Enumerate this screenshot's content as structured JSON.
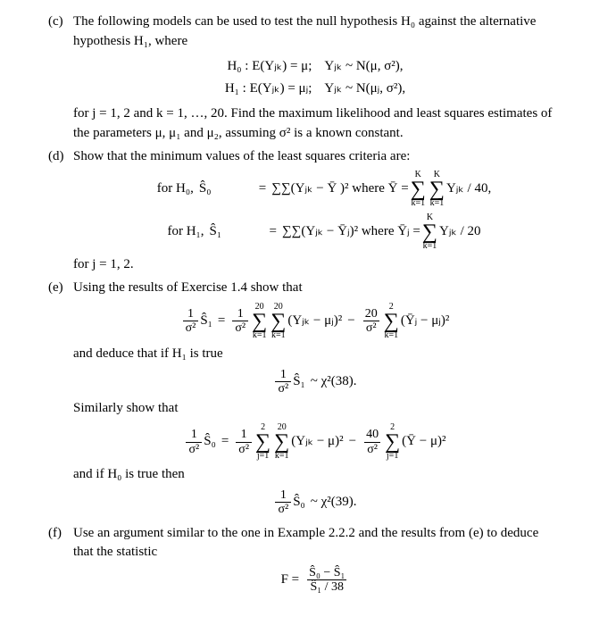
{
  "colors": {
    "text": "#000000",
    "background": "#ffffff"
  },
  "font": {
    "family": "Times New Roman, serif",
    "size_pt": 11
  },
  "c": {
    "marker": "(c)",
    "intro": "The following models can be used to test the null hypothesis H₀ against the alternative hypothesis H₁, where",
    "h0_lhs": "H₀ : E(Yⱼₖ) = μ;",
    "h0_rhs": "Yⱼₖ ~ N(μ, σ²),",
    "h1_lhs": "H₁ : E(Yⱼₖ) = μⱼ;",
    "h1_rhs": "Yⱼₖ ~ N(μⱼ, σ²),",
    "tail": "for j = 1, 2 and k = 1, …, 20.  Find the maximum likelihood and least squares estimates of the parameters μ, μ₁ and μ₂, assuming σ² is a known constant."
  },
  "d": {
    "marker": "(d)",
    "intro": "Show that the minimum values of the least squares criteria are:",
    "forH0": "for H₀,",
    "Shat0": "Ŝ₀",
    "eq": "=",
    "sum_top_kk": "K",
    "sum_bot_k1": "k=1",
    "expr0_left": "∑∑(Yⱼₖ − Ȳ )² where Ȳ =",
    "sum_inner_K": "K",
    "expr0_right": "Yⱼₖ / 40,",
    "forH1": "for H₁,",
    "Shat1": "Ŝ₁",
    "expr1_left": "∑∑(Yⱼₖ − Ȳⱼ)² where Ȳⱼ =",
    "expr1_right": "Yⱼₖ / 20",
    "tail": "for j = 1, 2."
  },
  "e": {
    "marker": "(e)",
    "intro": "Using the results of Exercise 1.4 show that",
    "lhs1_frac_num": "1",
    "lhs1_frac_den": "σ²",
    "Shat1": "Ŝ₁",
    "twenty": "20",
    "sum_k1": "k=1",
    "inner1": "(Yⱼₖ − μⱼ)²",
    "minus": "−",
    "two": "2",
    "inner2": "(Ȳⱼ − μⱼ)²",
    "deduce": "and deduce that if H₁ is true",
    "chi38": "~ χ²(38).",
    "similarly": "Similarly show that",
    "Shat0": "Ŝ₀",
    "forty": "40",
    "j1": "j=1",
    "inner3": "(Yⱼₖ − μ)²",
    "inner4": "(Ȳ − μ)²",
    "ifH0": "and if H₀ is true then",
    "chi39": "~ χ²(39)."
  },
  "f": {
    "marker": "(f)",
    "intro": "Use an argument similar to the one in Example 2.2.2 and the results from (e) to deduce that the statistic",
    "Fnum": "Ŝ₀ − Ŝ₁",
    "Fden": "Ŝ₁ / 38",
    "Flhs": "F ="
  }
}
